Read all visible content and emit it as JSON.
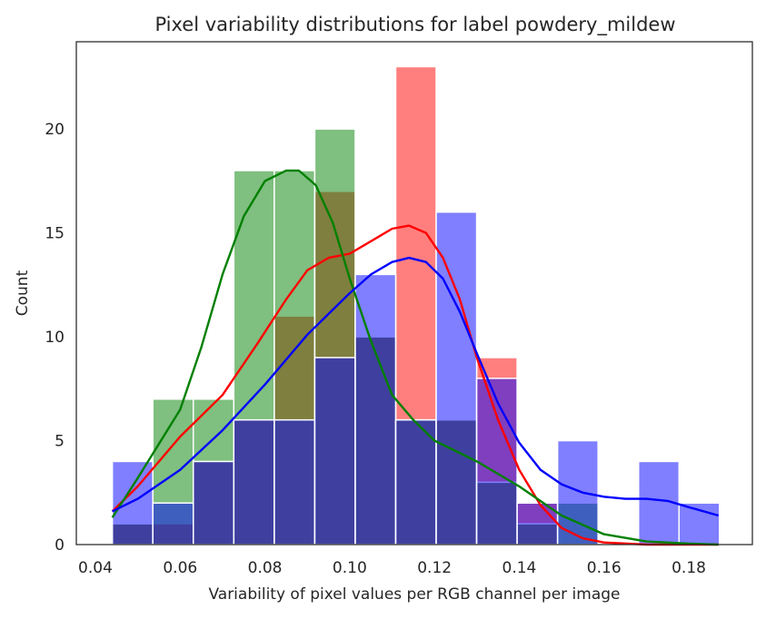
{
  "chart_data": {
    "type": "histogram",
    "title": "Pixel variability distributions for label powdery_mildew",
    "xlabel": "Variability of pixel values per RGB channel per image",
    "ylabel": "Count",
    "xlim": [
      0.0355,
      0.195
    ],
    "ylim": [
      0,
      24.2
    ],
    "xticks": [
      0.04,
      0.06,
      0.08,
      0.1,
      0.12,
      0.14,
      0.16,
      0.18
    ],
    "xtick_labels": [
      "0.04",
      "0.06",
      "0.08",
      "0.10",
      "0.12",
      "0.14",
      "0.16",
      "0.18"
    ],
    "yticks": [
      0,
      5,
      10,
      15,
      20
    ],
    "ytick_labels": [
      "0",
      "5",
      "10",
      "15",
      "20"
    ],
    "grid": false,
    "legend": "none",
    "bin_edges": [
      0.044,
      0.05355,
      0.0631,
      0.07265,
      0.0822,
      0.09175,
      0.1013,
      0.11085,
      0.1204,
      0.12995,
      0.1395,
      0.14905,
      0.1586,
      0.16815,
      0.1777,
      0.18725
    ],
    "series": [
      {
        "color": "#ff0000",
        "counts": [
          1,
          1,
          4,
          6,
          11,
          17,
          10,
          23,
          6,
          9,
          2,
          0,
          0,
          0,
          0
        ],
        "kde_x": [
          0.044,
          0.05,
          0.06,
          0.07,
          0.078,
          0.085,
          0.09,
          0.095,
          0.1,
          0.105,
          0.11,
          0.114,
          0.118,
          0.122,
          0.126,
          0.13,
          0.135,
          0.14,
          0.145,
          0.15,
          0.155,
          0.16,
          0.17,
          0.18,
          0.187
        ],
        "kde_y": [
          1.6,
          2.8,
          5.2,
          7.2,
          9.6,
          11.8,
          13.2,
          13.8,
          14.0,
          14.6,
          15.2,
          15.35,
          15.0,
          13.8,
          11.8,
          9.0,
          6.0,
          3.6,
          1.9,
          0.8,
          0.3,
          0.1,
          0.0,
          0.0,
          0.0
        ]
      },
      {
        "color": "#008000",
        "counts": [
          1,
          7,
          7,
          18,
          18,
          20,
          10,
          6,
          6,
          3,
          1,
          2,
          0,
          0,
          0
        ],
        "kde_x": [
          0.044,
          0.05,
          0.06,
          0.065,
          0.07,
          0.075,
          0.08,
          0.085,
          0.088,
          0.092,
          0.096,
          0.1,
          0.105,
          0.11,
          0.115,
          0.12,
          0.13,
          0.14,
          0.15,
          0.16,
          0.17,
          0.18,
          0.187
        ],
        "kde_y": [
          1.3,
          3.2,
          6.5,
          9.5,
          13.0,
          15.8,
          17.5,
          18.0,
          18.0,
          17.3,
          15.5,
          12.8,
          9.8,
          7.2,
          6.0,
          5.0,
          4.0,
          2.8,
          1.4,
          0.5,
          0.15,
          0.05,
          0.0
        ]
      },
      {
        "color": "#0000ff",
        "counts": [
          4,
          2,
          4,
          6,
          6,
          9,
          13,
          6,
          16,
          8,
          2,
          5,
          0,
          4,
          2
        ],
        "kde_x": [
          0.044,
          0.05,
          0.06,
          0.07,
          0.08,
          0.09,
          0.1,
          0.105,
          0.11,
          0.114,
          0.118,
          0.122,
          0.126,
          0.13,
          0.135,
          0.14,
          0.145,
          0.15,
          0.155,
          0.16,
          0.165,
          0.17,
          0.175,
          0.18,
          0.187
        ],
        "kde_y": [
          1.6,
          2.2,
          3.6,
          5.5,
          7.7,
          10.1,
          12.1,
          13.0,
          13.6,
          13.8,
          13.6,
          12.8,
          11.2,
          9.2,
          6.8,
          4.9,
          3.6,
          2.9,
          2.5,
          2.3,
          2.2,
          2.2,
          2.1,
          1.8,
          1.4
        ]
      }
    ]
  }
}
